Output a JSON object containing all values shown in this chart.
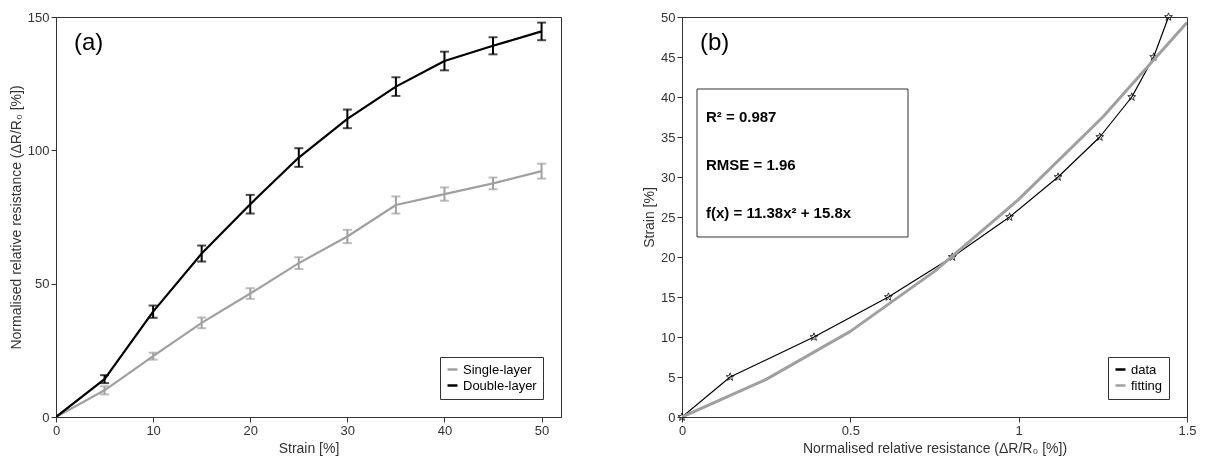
{
  "chart_data": [
    {
      "type": "line",
      "title": "(a)",
      "xlabel": "Strain [%]",
      "ylabel": "Normalised relative resistance (ΔR/R₀ [%])",
      "x": [
        0,
        5,
        10,
        15,
        20,
        25,
        30,
        35,
        40,
        45,
        50
      ],
      "series": [
        {
          "name": "Single-layer",
          "color": "#a0a0a0",
          "values": [
            0,
            10,
            22.8,
            35.3,
            46.3,
            57.7,
            67.7,
            79.5,
            83.6,
            87.6,
            92.2
          ],
          "errors": [
            null,
            1.5,
            1.3,
            2,
            2,
            2.2,
            2.5,
            3.2,
            2.5,
            2.2,
            2.8
          ]
        },
        {
          "name": "Double-layer",
          "color": "#000000",
          "values": [
            0,
            14.2,
            39.5,
            61.3,
            79.8,
            97.3,
            111.8,
            123.9,
            133.5,
            139.2,
            144.6
          ],
          "errors": [
            null,
            1.5,
            2.3,
            3,
            3.5,
            3.5,
            3.5,
            3.5,
            3.5,
            3.2,
            3.3
          ]
        }
      ],
      "xlim": [
        0,
        52
      ],
      "xticks": [
        0,
        10,
        20,
        30,
        40,
        50
      ],
      "ylim": [
        0,
        150
      ],
      "yticks": [
        0,
        50,
        100,
        150
      ],
      "grid": false,
      "legend": "bottom right"
    },
    {
      "type": "line",
      "title": "(b)",
      "xlabel": "Normalised relative resistance (ΔR/R₀ [%])",
      "ylabel": "Strain [%]",
      "annotations": [
        "R² = 0.987",
        "RMSE = 1.96",
        "f(x) = 11.38x² + 15.8x"
      ],
      "series": [
        {
          "name": "data",
          "color": "#000000",
          "marker": "star",
          "x": [
            0,
            0.143,
            0.392,
            0.613,
            0.803,
            0.973,
            1.117,
            1.241,
            1.336,
            1.401,
            1.445
          ],
          "values": [
            0,
            5,
            10,
            15,
            20,
            25,
            30,
            35,
            40,
            45,
            50
          ]
        },
        {
          "name": "fitting",
          "color": "#a0a0a0",
          "marker": "none",
          "x": [
            0,
            0.25,
            0.5,
            0.75,
            1.0,
            1.25,
            1.5
          ],
          "values": [
            0,
            4.7,
            10.7,
            18.2,
            27.2,
            37.5,
            49.3
          ]
        }
      ],
      "xlim": [
        0,
        1.5
      ],
      "xticks": [
        0,
        0.5,
        1,
        1.5
      ],
      "ylim": [
        0,
        50
      ],
      "yticks": [
        0,
        5,
        10,
        15,
        20,
        25,
        30,
        35,
        40,
        45,
        50
      ],
      "grid": false,
      "legend": "bottom right"
    }
  ]
}
